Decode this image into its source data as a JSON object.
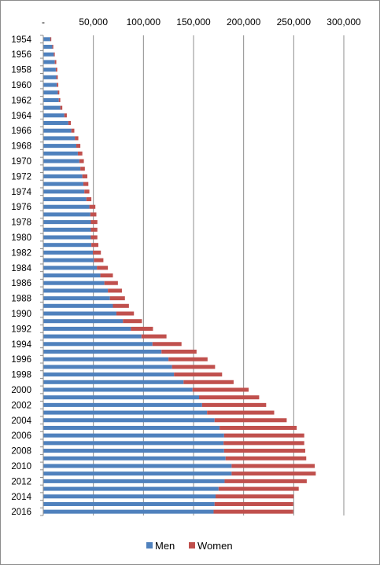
{
  "chart_data": {
    "type": "bar",
    "orientation": "horizontal",
    "stacked": true,
    "categories": [
      "1954",
      "1955",
      "1956",
      "1957",
      "1958",
      "1959",
      "1960",
      "1961",
      "1962",
      "1963",
      "1964",
      "1965",
      "1966",
      "1967",
      "1968",
      "1969",
      "1970",
      "1971",
      "1972",
      "1973",
      "1974",
      "1975",
      "1976",
      "1977",
      "1978",
      "1979",
      "1980",
      "1981",
      "1982",
      "1983",
      "1984",
      "1985",
      "1986",
      "1987",
      "1988",
      "1989",
      "1990",
      "1991",
      "1992",
      "1993",
      "1994",
      "1995",
      "1996",
      "1997",
      "1998",
      "1999",
      "2000",
      "2001",
      "2002",
      "2003",
      "2004",
      "2005",
      "2006",
      "2007",
      "2008",
      "2009",
      "2010",
      "2011",
      "2012",
      "2013",
      "2014",
      "2015",
      "2016"
    ],
    "category_labels": [
      "1954",
      "",
      "1956",
      "",
      "1958",
      "",
      "1960",
      "",
      "1962",
      "",
      "1964",
      "",
      "1966",
      "",
      "1968",
      "",
      "1970",
      "",
      "1972",
      "",
      "1974",
      "",
      "1976",
      "",
      "1978",
      "",
      "1980",
      "",
      "1982",
      "",
      "1984",
      "",
      "1986",
      "",
      "1988",
      "",
      "1990",
      "",
      "1992",
      "",
      "1994",
      "",
      "1996",
      "",
      "1998",
      "",
      "2000",
      "",
      "2002",
      "",
      "2004",
      "",
      "2006",
      "",
      "2008",
      "",
      "2010",
      "",
      "2012",
      "",
      "2014",
      "",
      "2016"
    ],
    "series": [
      {
        "name": "Men",
        "color": "#4f81bd",
        "values": [
          7000,
          9000,
          10500,
          11500,
          12500,
          13000,
          13500,
          14500,
          15500,
          17000,
          21000,
          25000,
          28000,
          31500,
          33000,
          34500,
          36000,
          37000,
          39000,
          40000,
          41000,
          43000,
          46000,
          47000,
          47500,
          47500,
          47500,
          48000,
          49500,
          50500,
          53500,
          57000,
          61000,
          64500,
          66500,
          69500,
          73000,
          79500,
          87500,
          98000,
          109000,
          118000,
          125000,
          128500,
          130500,
          140000,
          149000,
          155500,
          158500,
          163500,
          171000,
          176000,
          180500,
          180000,
          180500,
          182000,
          188000,
          188000,
          181000,
          175000,
          172000,
          171000,
          170000
        ]
      },
      {
        "name": "Women",
        "color": "#c0504d",
        "values": [
          1000,
          1000,
          1000,
          1500,
          1500,
          1500,
          1500,
          1500,
          1500,
          2000,
          2500,
          2500,
          3000,
          3500,
          4000,
          4500,
          4500,
          4500,
          5000,
          5000,
          5000,
          5000,
          6000,
          6000,
          6500,
          6500,
          6500,
          7000,
          8000,
          9500,
          11000,
          12500,
          13500,
          14000,
          15000,
          16000,
          17500,
          19000,
          22000,
          25000,
          29000,
          35000,
          39000,
          43000,
          48000,
          50000,
          56000,
          60000,
          64000,
          67000,
          72000,
          77000,
          80000,
          80500,
          81000,
          80500,
          83000,
          84000,
          82000,
          80000,
          78000,
          78500,
          79500
        ]
      }
    ],
    "xlim": [
      0,
      300000
    ],
    "xticks": [
      "-",
      "50,000",
      "100,000",
      "150,000",
      "200,000",
      "250,000",
      "300,000"
    ],
    "gridlines": true,
    "legend_position": "bottom"
  }
}
